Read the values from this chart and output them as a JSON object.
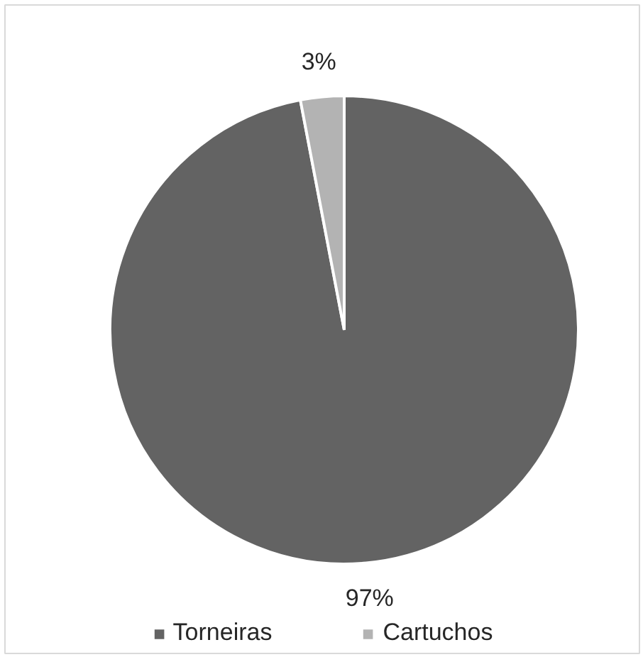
{
  "chart_data": {
    "type": "pie",
    "categories": [
      "Torneiras",
      "Cartuchos"
    ],
    "values": [
      97,
      3
    ],
    "colors": [
      "#636363",
      "#b3b3b3"
    ],
    "value_labels": [
      "97%",
      "3%"
    ],
    "legend": "bottom"
  }
}
